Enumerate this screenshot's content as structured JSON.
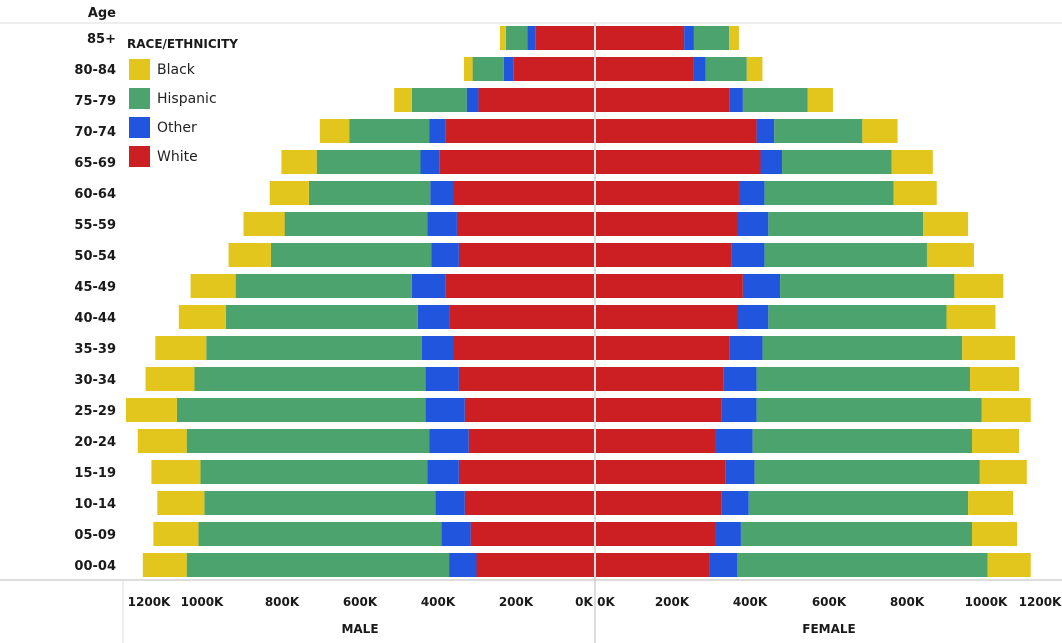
{
  "chart_data": {
    "type": "bar",
    "orientation": "horizontal",
    "layout": "population-pyramid",
    "age_axis_title": "Age",
    "panels": [
      {
        "key": "male",
        "label": "MALE"
      },
      {
        "key": "female",
        "label": "FEMALE"
      }
    ],
    "legend_title": "RACE/ETHNICITY",
    "legend_position": "top-left",
    "stack_order": [
      "White",
      "Other",
      "Hispanic",
      "Black"
    ],
    "categories": [
      "85+",
      "80-84",
      "75-79",
      "70-74",
      "65-69",
      "60-64",
      "55-59",
      "50-54",
      "45-49",
      "40-44",
      "35-39",
      "30-34",
      "25-29",
      "20-24",
      "15-19",
      "10-14",
      "05-09",
      "00-04"
    ],
    "series": [
      {
        "name": "Black",
        "color": "#E2C61E",
        "male": [
          15000,
          22000,
          45000,
          75000,
          90000,
          100000,
          105000,
          108000,
          115000,
          120000,
          130000,
          125000,
          130000,
          125000,
          125000,
          120000,
          115000,
          112000
        ],
        "female": [
          25000,
          40000,
          65000,
          90000,
          105000,
          110000,
          115000,
          120000,
          125000,
          125000,
          135000,
          125000,
          125000,
          120000,
          120000,
          115000,
          115000,
          110000
        ]
      },
      {
        "name": "Hispanic",
        "color": "#4DA36E",
        "male": [
          55000,
          80000,
          140000,
          205000,
          265000,
          310000,
          365000,
          410000,
          450000,
          490000,
          550000,
          590000,
          635000,
          620000,
          580000,
          590000,
          620000,
          670000
        ],
        "female": [
          90000,
          105000,
          165000,
          225000,
          280000,
          330000,
          395000,
          415000,
          445000,
          455000,
          510000,
          545000,
          575000,
          560000,
          575000,
          560000,
          590000,
          640000
        ]
      },
      {
        "name": "Other",
        "color": "#2255DD",
        "male": [
          20000,
          25000,
          30000,
          40000,
          48000,
          58000,
          75000,
          70000,
          85000,
          80000,
          80000,
          85000,
          100000,
          100000,
          80000,
          75000,
          75000,
          70000
        ],
        "female": [
          25000,
          30000,
          35000,
          45000,
          55000,
          65000,
          80000,
          85000,
          95000,
          80000,
          85000,
          85000,
          90000,
          95000,
          75000,
          70000,
          65000,
          70000
        ]
      },
      {
        "name": "White",
        "color": "#CC1F24",
        "male": [
          150000,
          205000,
          295000,
          380000,
          395000,
          360000,
          350000,
          345000,
          380000,
          370000,
          360000,
          345000,
          330000,
          320000,
          345000,
          330000,
          315000,
          300000
        ],
        "female": [
          225000,
          250000,
          340000,
          410000,
          420000,
          365000,
          360000,
          345000,
          375000,
          360000,
          340000,
          325000,
          320000,
          305000,
          330000,
          320000,
          305000,
          290000
        ]
      }
    ],
    "male_ticks": [
      "1200K",
      "1000K",
      "800K",
      "600K",
      "400K",
      "200K",
      "0K"
    ],
    "female_ticks": [
      "0K",
      "200K",
      "400K",
      "600K",
      "800K",
      "1000K",
      "1200K"
    ],
    "xlim": [
      0,
      1200000
    ],
    "grid": false
  }
}
